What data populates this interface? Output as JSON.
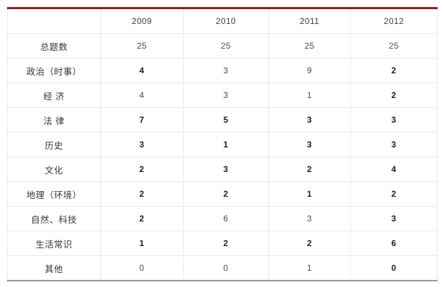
{
  "colors": {
    "accent_red": "#a81217",
    "bottom_rule_gray": "#98988e",
    "grid_line": "#e9e9e7",
    "regular_text": "#4a4a4a",
    "bold_text": "#1c1c1c"
  },
  "table": {
    "corner_label": "",
    "columns": [
      "2009",
      "2010",
      "2011",
      "2012"
    ],
    "rows": [
      {
        "label": "总题数",
        "values": [
          "25",
          "25",
          "25",
          "25"
        ],
        "bold": [
          false,
          false,
          false,
          false
        ]
      },
      {
        "label": "政治（时事）",
        "values": [
          "4",
          "3",
          "9",
          "2"
        ],
        "bold": [
          true,
          false,
          false,
          true
        ]
      },
      {
        "label": "经 济",
        "values": [
          "4",
          "3",
          "1",
          "2"
        ],
        "bold": [
          false,
          false,
          false,
          true
        ]
      },
      {
        "label": "法 律",
        "values": [
          "7",
          "5",
          "3",
          "3"
        ],
        "bold": [
          true,
          true,
          true,
          true
        ]
      },
      {
        "label": "历史",
        "values": [
          "3",
          "1",
          "3",
          "3"
        ],
        "bold": [
          true,
          true,
          true,
          true
        ]
      },
      {
        "label": "文化",
        "values": [
          "2",
          "3",
          "2",
          "4"
        ],
        "bold": [
          true,
          true,
          true,
          true
        ]
      },
      {
        "label": "地理（环境）",
        "values": [
          "2",
          "2",
          "1",
          "2"
        ],
        "bold": [
          true,
          true,
          true,
          true
        ]
      },
      {
        "label": "自然、科技",
        "values": [
          "2",
          "6",
          "3",
          "3"
        ],
        "bold": [
          true,
          false,
          false,
          true
        ]
      },
      {
        "label": "生活常识",
        "values": [
          "1",
          "2",
          "2",
          "6"
        ],
        "bold": [
          true,
          true,
          true,
          true
        ]
      },
      {
        "label": "其他",
        "values": [
          "0",
          "0",
          "1",
          "0"
        ],
        "bold": [
          false,
          false,
          false,
          true
        ]
      }
    ]
  },
  "chart_data": {
    "type": "table",
    "title": "",
    "categories": [
      "2009",
      "2010",
      "2011",
      "2012"
    ],
    "series": [
      {
        "name": "总题数",
        "values": [
          25,
          25,
          25,
          25
        ]
      },
      {
        "name": "政治（时事）",
        "values": [
          4,
          3,
          9,
          2
        ]
      },
      {
        "name": "经济",
        "values": [
          4,
          3,
          1,
          2
        ]
      },
      {
        "name": "法律",
        "values": [
          7,
          5,
          3,
          3
        ]
      },
      {
        "name": "历史",
        "values": [
          3,
          1,
          3,
          3
        ]
      },
      {
        "name": "文化",
        "values": [
          2,
          3,
          2,
          4
        ]
      },
      {
        "name": "地理（环境）",
        "values": [
          2,
          2,
          1,
          2
        ]
      },
      {
        "name": "自然、科技",
        "values": [
          2,
          6,
          3,
          3
        ]
      },
      {
        "name": "生活常识",
        "values": [
          1,
          2,
          2,
          6
        ]
      },
      {
        "name": "其他",
        "values": [
          0,
          0,
          1,
          0
        ]
      }
    ]
  }
}
